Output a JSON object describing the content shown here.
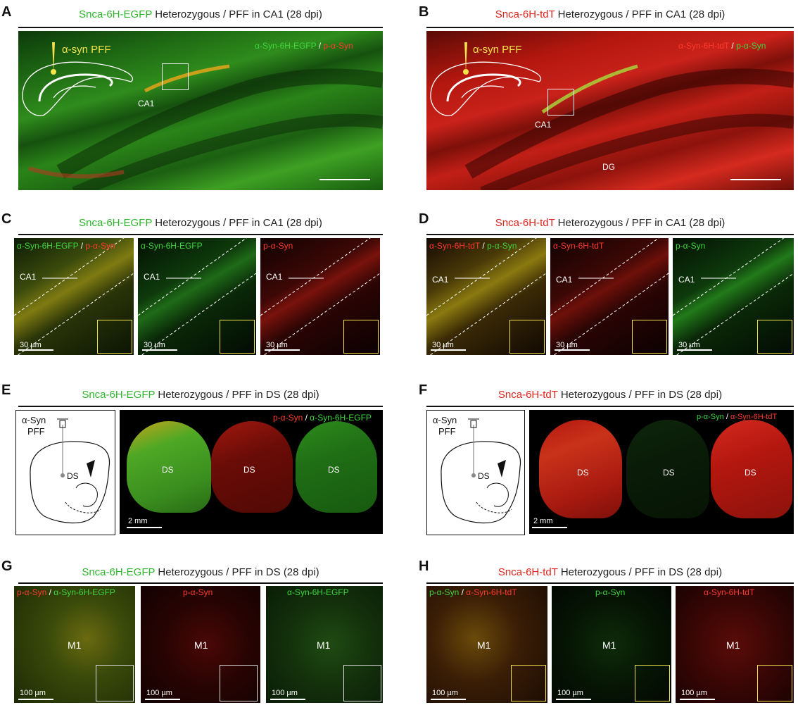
{
  "colors": {
    "green": "#2db52d",
    "red": "#e0231b",
    "yellow": "#f4e34a"
  },
  "panels": {
    "A": {
      "letter": "A",
      "title_colored": "Snca-6H-EGFP",
      "title_rest": " Heterozygous / PFF in CA1 (28 dpi)",
      "legend_a": "α-Syn-6H-EGFP",
      "legend_sep": " / ",
      "legend_b": "p-α-Syn",
      "pff": "α-syn PFF",
      "region": "CA1"
    },
    "B": {
      "letter": "B",
      "title_colored": "Snca-6H-tdT",
      "title_rest": " Heterozygous / PFF in CA1 (28 dpi)",
      "legend_a": "α-Syn-6H-tdT",
      "legend_sep": " / ",
      "legend_b": "p-α-Syn",
      "pff": "α-syn PFF",
      "region": "CA1",
      "region2": "DG"
    },
    "C": {
      "letter": "C",
      "title_colored": "Snca-6H-EGFP",
      "title_rest": " Heterozygous / PFF in CA1 (28 dpi)",
      "sub": [
        {
          "a": "α-Syn-6H-EGFP",
          "sep": " / ",
          "b": "p-α-Syn"
        },
        {
          "a": "α-Syn-6H-EGFP"
        },
        {
          "b": "p-α-Syn"
        }
      ],
      "region": "CA1",
      "scale": "30 µm"
    },
    "D": {
      "letter": "D",
      "title_colored": "Snca-6H-tdT",
      "title_rest": " Heterozygous / PFF in CA1 (28 dpi)",
      "sub": [
        {
          "a": "α-Syn-6H-tdT",
          "sep": " / ",
          "b": "p-α-Syn"
        },
        {
          "a": "α-Syn-6H-tdT"
        },
        {
          "b": "p-α-Syn"
        }
      ],
      "region": "CA1",
      "scale": "30 µm"
    },
    "E": {
      "letter": "E",
      "title_colored": "Snca-6H-EGFP",
      "title_rest": " Heterozygous / PFF in DS (28 dpi)",
      "schem_1": "α-Syn",
      "schem_2": "PFF",
      "region": "DS",
      "legend_a": "p-α-Syn",
      "legend_sep": " / ",
      "legend_b": "α-Syn-6H-EGFP",
      "scale": "2 mm"
    },
    "F": {
      "letter": "F",
      "title_colored": "Snca-6H-tdT",
      "title_rest": " Heterozygous / PFF in DS (28 dpi)",
      "schem_1": "α-Syn",
      "schem_2": "PFF",
      "region": "DS",
      "legend_a": "p-α-Syn",
      "legend_sep": " / ",
      "legend_b": "α-Syn-6H-tdT",
      "scale": "2 mm"
    },
    "G": {
      "letter": "G",
      "title_colored": "Snca-6H-EGFP",
      "title_rest": " Heterozygous / PFF in DS (28 dpi)",
      "sub": [
        {
          "b": "p-α-Syn",
          "sep": " / ",
          "a": "α-Syn-6H-EGFP"
        },
        {
          "b": "p-α-Syn"
        },
        {
          "a": "α-Syn-6H-EGFP"
        }
      ],
      "region": "M1",
      "scale": "100 µm"
    },
    "H": {
      "letter": "H",
      "title_colored": "Snca-6H-tdT",
      "title_rest": " Heterozygous / PFF in DS (28 dpi)",
      "sub": [
        {
          "a": "p-α-Syn",
          "sep": " / ",
          "b": "α-Syn-6H-tdT"
        },
        {
          "a": "p-α-Syn"
        },
        {
          "b": "α-Syn-6H-tdT"
        }
      ],
      "region": "M1",
      "scale": "100 µm"
    }
  }
}
